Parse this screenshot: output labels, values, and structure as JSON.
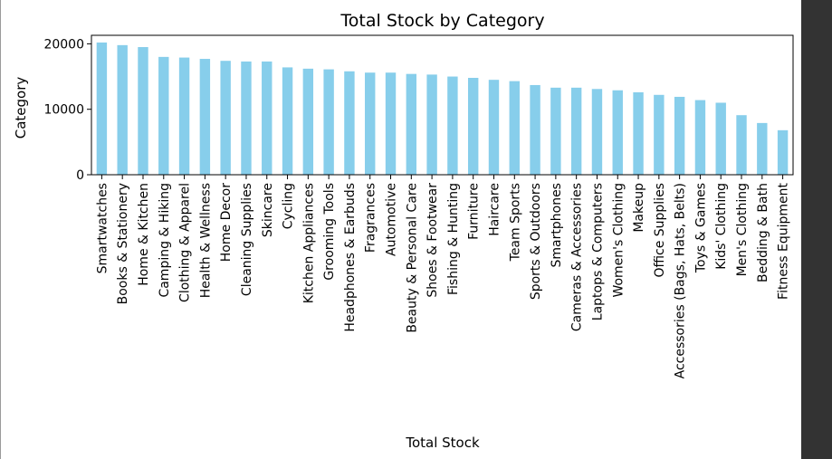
{
  "colors": {
    "bar": "#87ceeb",
    "panel": "#333333",
    "axis": "#000000",
    "background": "#ffffff"
  },
  "chart_data": {
    "type": "bar",
    "title": "Total Stock by Category",
    "xlabel": "Total Stock",
    "ylabel": "Category",
    "ylim": [
      0,
      21300
    ],
    "yticks": [
      0,
      10000,
      20000
    ],
    "ytick_labels": [
      "0",
      "10000",
      "20000"
    ],
    "grid": false,
    "legend": "none",
    "categories": [
      "Smartwatches",
      "Books & Stationery",
      "Home & Kitchen",
      "Camping & Hiking",
      "Clothing & Apparel",
      "Health & Wellness",
      "Home Decor",
      "Cleaning Supplies",
      "Skincare",
      "Cycling",
      "Kitchen Appliances",
      "Grooming Tools",
      "Headphones & Earbuds",
      "Fragrances",
      "Automotive",
      "Beauty & Personal Care",
      "Shoes & Footwear",
      "Fishing & Hunting",
      "Furniture",
      "Haircare",
      "Team Sports",
      "Sports & Outdoors",
      "Smartphones",
      "Cameras & Accessories",
      "Laptops & Computers",
      "Women's Clothing",
      "Makeup",
      "Office Supplies",
      "Accessories (Bags, Hats, Belts)",
      "Toys & Games",
      "Kids' Clothing",
      "Men's Clothing",
      "Bedding & Bath",
      "Fitness Equipment"
    ],
    "values": [
      20200,
      19800,
      19500,
      18000,
      17900,
      17700,
      17400,
      17300,
      17300,
      16400,
      16200,
      16100,
      15800,
      15600,
      15600,
      15400,
      15300,
      15000,
      14800,
      14500,
      14300,
      13700,
      13300,
      13300,
      13100,
      12900,
      12600,
      12200,
      11900,
      11400,
      11000,
      9100,
      7900,
      6800
    ]
  }
}
